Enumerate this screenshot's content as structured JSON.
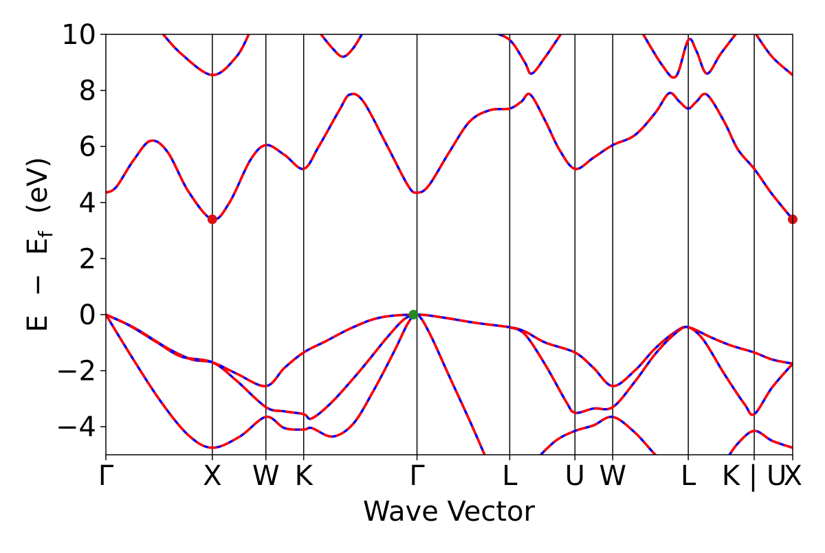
{
  "chart_data": {
    "type": "line",
    "title": "",
    "xlabel": "Wave Vector",
    "ylabel": {
      "text_E": "E",
      "text_minus": "−",
      "text_E2": "E",
      "text_sub": "f",
      "text_unit": "(eV)"
    },
    "ylim": [
      -5,
      10
    ],
    "xlim": [
      0,
      10.0
    ],
    "yticks": [
      {
        "value": 10,
        "label": "10"
      },
      {
        "value": 8,
        "label": "8"
      },
      {
        "value": 6,
        "label": "6"
      },
      {
        "value": 4,
        "label": "4"
      },
      {
        "value": 2,
        "label": "2"
      },
      {
        "value": 0,
        "label": "0"
      },
      {
        "value": -2,
        "label": "−2"
      },
      {
        "value": -4,
        "label": "−4"
      }
    ],
    "kpoints": [
      {
        "x": 0.0,
        "label": "Γ"
      },
      {
        "x": 1.55,
        "label": "X"
      },
      {
        "x": 2.33,
        "label": "W"
      },
      {
        "x": 2.88,
        "label": "K"
      },
      {
        "x": 4.53,
        "label": "Γ"
      },
      {
        "x": 5.88,
        "label": "L"
      },
      {
        "x": 6.83,
        "label": "U"
      },
      {
        "x": 7.38,
        "label": "W"
      },
      {
        "x": 8.48,
        "label": "L"
      },
      {
        "x": 9.44,
        "label": "K | U"
      },
      {
        "x": 10.0,
        "label": "X"
      }
    ],
    "line_colors": {
      "spin_up": "#0000ff",
      "spin_down": "#ff0000"
    },
    "markers": [
      {
        "x": 1.55,
        "y": 3.4,
        "color": "#dd1111"
      },
      {
        "x": 10.0,
        "y": 3.4,
        "color": "#dd1111"
      },
      {
        "x": 4.48,
        "y": 0.0,
        "color": "#228b22"
      }
    ],
    "bands": [
      [
        [
          0,
          0
        ],
        [
          0.4,
          -1.6
        ],
        [
          0.8,
          -3.1
        ],
        [
          1.2,
          -4.3
        ],
        [
          1.55,
          -4.75
        ],
        [
          1.95,
          -4.35
        ],
        [
          2.33,
          -3.65
        ],
        [
          2.6,
          -4.05
        ],
        [
          2.88,
          -4.1
        ],
        [
          3.0,
          -4.05
        ],
        [
          3.3,
          -4.35
        ],
        [
          3.6,
          -3.9
        ],
        [
          3.9,
          -2.7
        ],
        [
          4.2,
          -1.3
        ],
        [
          4.4,
          -0.3
        ],
        [
          4.53,
          0
        ],
        [
          4.7,
          -0.6
        ],
        [
          5.0,
          -2.2
        ],
        [
          5.3,
          -3.8
        ],
        [
          5.55,
          -5.2
        ]
      ],
      [
        [
          0,
          0
        ],
        [
          0.35,
          -0.4
        ],
        [
          0.75,
          -1.0
        ],
        [
          1.1,
          -1.5
        ],
        [
          1.55,
          -1.7
        ],
        [
          1.9,
          -2.35
        ],
        [
          2.33,
          -3.3
        ],
        [
          2.6,
          -3.45
        ],
        [
          2.88,
          -3.55
        ],
        [
          3.0,
          -3.7
        ],
        [
          3.3,
          -3.1
        ],
        [
          3.7,
          -2.0
        ],
        [
          4.1,
          -0.8
        ],
        [
          4.35,
          -0.15
        ],
        [
          4.53,
          0
        ]
      ],
      [
        [
          0,
          0
        ],
        [
          0.4,
          -0.45
        ],
        [
          0.9,
          -1.2
        ],
        [
          1.25,
          -1.6
        ],
        [
          1.55,
          -1.7
        ],
        [
          1.9,
          -2.1
        ],
        [
          2.33,
          -2.55
        ],
        [
          2.6,
          -1.9
        ],
        [
          2.88,
          -1.35
        ],
        [
          3.2,
          -0.95
        ],
        [
          3.6,
          -0.45
        ],
        [
          4.0,
          -0.1
        ],
        [
          4.53,
          0
        ],
        [
          4.9,
          -0.1
        ],
        [
          5.4,
          -0.3
        ],
        [
          5.88,
          -0.45
        ],
        [
          6.1,
          -0.6
        ],
        [
          6.4,
          -1.0
        ],
        [
          6.83,
          -1.35
        ],
        [
          7.1,
          -1.9
        ],
        [
          7.38,
          -2.55
        ],
        [
          7.7,
          -2.0
        ],
        [
          8.0,
          -1.2
        ],
        [
          8.3,
          -0.6
        ],
        [
          8.48,
          -0.45
        ],
        [
          8.8,
          -0.8
        ],
        [
          9.1,
          -1.1
        ],
        [
          9.44,
          -1.35
        ],
        [
          9.7,
          -1.6
        ],
        [
          10.0,
          -1.75
        ]
      ],
      [
        [
          5.88,
          -0.45
        ],
        [
          6.1,
          -0.7
        ],
        [
          6.4,
          -1.8
        ],
        [
          6.7,
          -3.1
        ],
        [
          6.83,
          -3.5
        ],
        [
          7.1,
          -3.35
        ],
        [
          7.38,
          -3.3
        ],
        [
          7.7,
          -2.4
        ],
        [
          8.0,
          -1.4
        ],
        [
          8.3,
          -0.65
        ],
        [
          8.48,
          -0.45
        ],
        [
          8.7,
          -0.9
        ],
        [
          9.0,
          -2.1
        ],
        [
          9.3,
          -3.2
        ],
        [
          9.44,
          -3.55
        ],
        [
          9.7,
          -2.6
        ],
        [
          10.0,
          -1.75
        ]
      ],
      [
        [
          6.25,
          -5.2
        ],
        [
          6.55,
          -4.5
        ],
        [
          6.83,
          -4.15
        ],
        [
          7.1,
          -3.95
        ],
        [
          7.38,
          -3.65
        ],
        [
          7.7,
          -4.2
        ],
        [
          8.0,
          -5.0
        ],
        [
          8.2,
          -5.4
        ]
      ],
      [
        [
          9.0,
          -5.3
        ],
        [
          9.2,
          -4.6
        ],
        [
          9.44,
          -4.15
        ],
        [
          9.7,
          -4.5
        ],
        [
          10.0,
          -4.75
        ]
      ],
      [
        [
          0,
          4.35
        ],
        [
          0.15,
          4.55
        ],
        [
          0.4,
          5.5
        ],
        [
          0.65,
          6.2
        ],
        [
          0.9,
          5.8
        ],
        [
          1.2,
          4.4
        ],
        [
          1.55,
          3.4
        ],
        [
          1.8,
          4.0
        ],
        [
          2.1,
          5.5
        ],
        [
          2.33,
          6.05
        ],
        [
          2.6,
          5.7
        ],
        [
          2.88,
          5.2
        ],
        [
          3.1,
          6.0
        ],
        [
          3.4,
          7.3
        ],
        [
          3.55,
          7.85
        ],
        [
          3.75,
          7.6
        ],
        [
          4.1,
          6.0
        ],
        [
          4.4,
          4.6
        ],
        [
          4.53,
          4.35
        ],
        [
          4.7,
          4.6
        ],
        [
          5.0,
          5.8
        ],
        [
          5.3,
          6.9
        ],
        [
          5.6,
          7.3
        ],
        [
          5.88,
          7.35
        ],
        [
          6.05,
          7.6
        ],
        [
          6.18,
          7.85
        ],
        [
          6.4,
          6.9
        ],
        [
          6.6,
          5.9
        ],
        [
          6.83,
          5.2
        ],
        [
          7.1,
          5.6
        ],
        [
          7.38,
          6.05
        ],
        [
          7.7,
          6.4
        ],
        [
          8.0,
          7.2
        ],
        [
          8.2,
          7.9
        ],
        [
          8.35,
          7.6
        ],
        [
          8.48,
          7.35
        ],
        [
          8.6,
          7.6
        ],
        [
          8.75,
          7.85
        ],
        [
          9.0,
          6.9
        ],
        [
          9.2,
          5.9
        ],
        [
          9.44,
          5.2
        ],
        [
          9.7,
          4.3
        ],
        [
          10.0,
          3.4
        ]
      ],
      [
        [
          0.8,
          10.1
        ],
        [
          1.1,
          9.3
        ],
        [
          1.55,
          8.55
        ],
        [
          1.9,
          9.2
        ],
        [
          2.1,
          10.1
        ]
      ],
      [
        [
          3.1,
          10.1
        ],
        [
          3.3,
          9.5
        ],
        [
          3.45,
          9.2
        ],
        [
          3.6,
          9.5
        ],
        [
          3.75,
          10.1
        ]
      ],
      [
        [
          5.6,
          10.1
        ],
        [
          5.88,
          9.8
        ],
        [
          6.1,
          9.0
        ],
        [
          6.2,
          8.6
        ],
        [
          6.4,
          9.2
        ],
        [
          6.65,
          10.1
        ]
      ],
      [
        [
          7.8,
          10.1
        ],
        [
          8.1,
          8.9
        ],
        [
          8.3,
          8.5
        ],
        [
          8.48,
          9.8
        ],
        [
          8.6,
          9.4
        ],
        [
          8.75,
          8.6
        ],
        [
          8.95,
          9.3
        ],
        [
          9.2,
          10.1
        ]
      ],
      [
        [
          9.44,
          10.1
        ],
        [
          9.7,
          9.2
        ],
        [
          10.0,
          8.55
        ]
      ]
    ]
  }
}
